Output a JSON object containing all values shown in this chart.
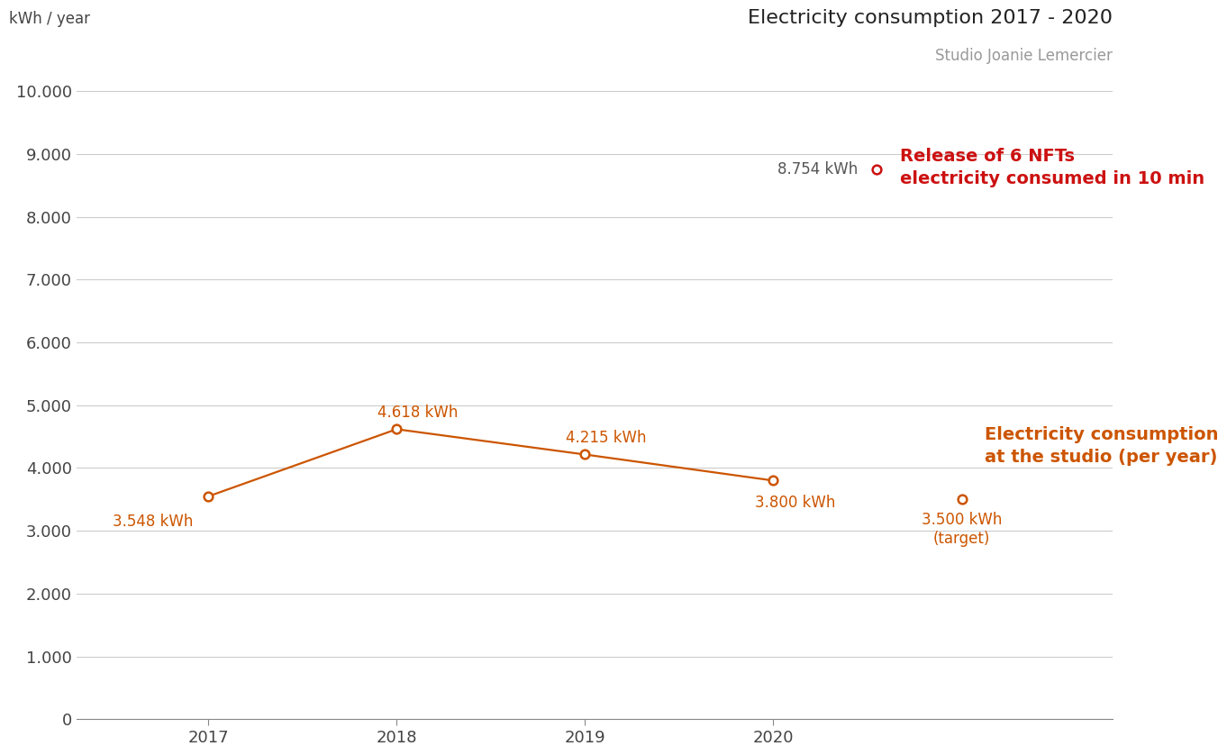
{
  "title": "Electricity consumption 2017 - 2020",
  "subtitle": "Studio Joanie Lemercier",
  "ylabel": "kWh / year",
  "background_color": "#ffffff",
  "plot_bg_color": "#ffffff",
  "line_color": "#cc5500",
  "nft_marker_color": "#cc1111",
  "years": [
    2017,
    2018,
    2019,
    2020
  ],
  "consumption": [
    3548,
    4618,
    4215,
    3800
  ],
  "target_x": 2021.0,
  "target_y": 3500,
  "nft_x": 2020.55,
  "nft_y": 8754,
  "nft_label": "8.754 kWh",
  "nft_annotation_line1": "Release of 6 NFTs",
  "nft_annotation_line2": "electricity consumed in 10 min",
  "studio_annotation_line1": "Electricity consumption",
  "studio_annotation_line2": "at the studio (per year)",
  "target_label_line1": "3.500 kWh",
  "target_label_line2": "(target)",
  "ylim": [
    0,
    10600
  ],
  "yticks": [
    0,
    1000,
    2000,
    3000,
    4000,
    5000,
    6000,
    7000,
    8000,
    9000,
    10000
  ],
  "ytick_labels": [
    "0",
    "1.000",
    "2.000",
    "3.000",
    "4.000",
    "5.000",
    "6.000",
    "7.000",
    "8.000",
    "9.000",
    "10.000"
  ],
  "xlim_left": 2016.3,
  "xlim_right": 2021.8,
  "title_fontsize": 16,
  "subtitle_fontsize": 12,
  "label_fontsize": 12,
  "annotation_fontsize": 14,
  "tick_label_fontsize": 13,
  "ylabel_fontsize": 12
}
